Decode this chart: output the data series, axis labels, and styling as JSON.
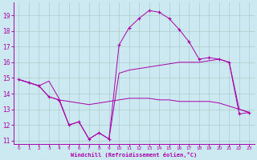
{
  "xlabel": "Windchill (Refroidissement éolien,°C)",
  "bg_color": "#cce8f0",
  "grid_color": "#aacccc",
  "line_color": "#aa00aa",
  "xlim": [
    -0.5,
    23.5
  ],
  "ylim": [
    10.8,
    19.8
  ],
  "yticks": [
    11,
    12,
    13,
    14,
    15,
    16,
    17,
    18,
    19
  ],
  "xticks": [
    0,
    1,
    2,
    3,
    4,
    5,
    6,
    7,
    8,
    9,
    10,
    11,
    12,
    13,
    14,
    15,
    16,
    17,
    18,
    19,
    20,
    21,
    22,
    23
  ],
  "line1_x": [
    0,
    1,
    2,
    3,
    4,
    5,
    6,
    7,
    8,
    9,
    10,
    11,
    12,
    13,
    14,
    15,
    16,
    17,
    18,
    19,
    20,
    21,
    22,
    23
  ],
  "line1_y": [
    14.9,
    14.7,
    14.5,
    14.8,
    13.7,
    12.0,
    12.2,
    11.1,
    11.5,
    11.1,
    15.3,
    15.5,
    15.6,
    15.7,
    15.8,
    15.9,
    16.0,
    16.0,
    16.0,
    16.1,
    16.2,
    16.0,
    13.0,
    12.8
  ],
  "line2_x": [
    0,
    1,
    2,
    3,
    4,
    5,
    6,
    7,
    8,
    9,
    10,
    11,
    12,
    13,
    14,
    15,
    16,
    17,
    18,
    19,
    20,
    21,
    22,
    23
  ],
  "line2_y": [
    14.9,
    14.7,
    14.5,
    13.8,
    13.6,
    13.5,
    13.4,
    13.3,
    13.4,
    13.5,
    13.6,
    13.7,
    13.7,
    13.7,
    13.6,
    13.6,
    13.5,
    13.5,
    13.5,
    13.5,
    13.4,
    13.2,
    13.0,
    12.8
  ],
  "line3_x": [
    0,
    1,
    2,
    3,
    4,
    5,
    6,
    7,
    8,
    9,
    10,
    11,
    12,
    13,
    14,
    15,
    16,
    17,
    18,
    19,
    20,
    21,
    22,
    23
  ],
  "line3_y": [
    14.9,
    14.7,
    14.5,
    13.8,
    13.6,
    12.0,
    12.2,
    11.1,
    11.5,
    11.1,
    17.1,
    18.2,
    18.8,
    19.3,
    19.2,
    18.8,
    18.1,
    17.3,
    16.2,
    16.3,
    16.2,
    16.0,
    12.7,
    12.8
  ]
}
